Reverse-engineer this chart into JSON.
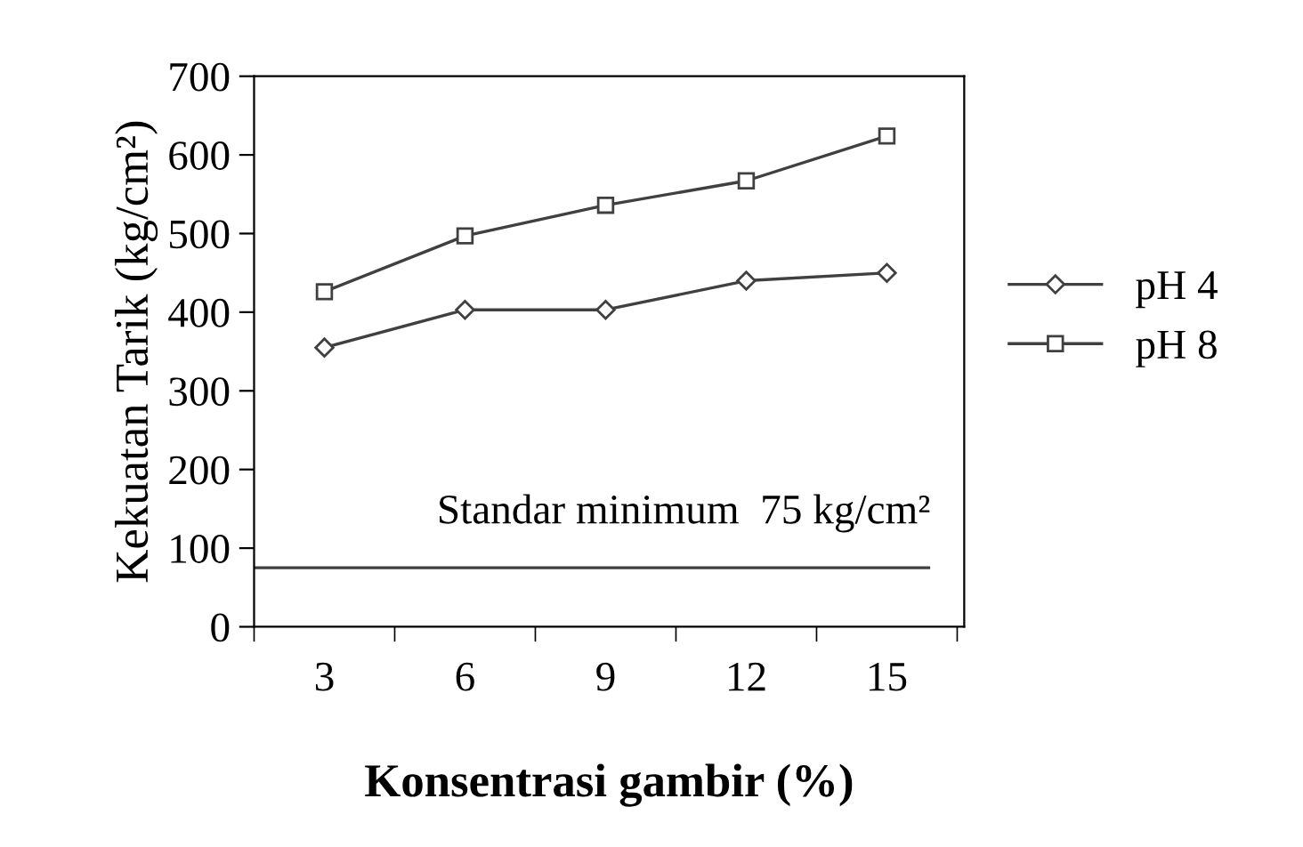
{
  "chart_data": {
    "type": "line",
    "xlabel": "Konsentrasi gambir (%)",
    "ylabel": "Kekuatan Tarik (kg/cm²)",
    "categories": [
      "3",
      "6",
      "9",
      "12",
      "15"
    ],
    "series": [
      {
        "name": "pH 4",
        "color": "#404040",
        "marker": "diamond",
        "values": [
          355,
          403,
          403,
          440,
          450
        ]
      },
      {
        "name": "pH 8",
        "color": "#404040",
        "marker": "square",
        "values": [
          426,
          497,
          536,
          567,
          624
        ]
      }
    ],
    "ylim": [
      0,
      700
    ],
    "yticks": [
      0,
      100,
      200,
      300,
      400,
      500,
      600,
      700
    ],
    "ref_lines": [
      {
        "axis": "y",
        "value": 75,
        "label": "Standar minimum  75 kg/cm²",
        "color": "#404040"
      }
    ],
    "legend": "right",
    "grid": false,
    "line_style": "solid"
  }
}
